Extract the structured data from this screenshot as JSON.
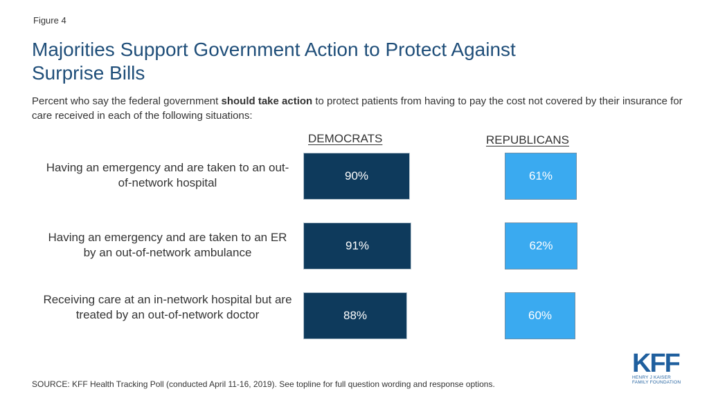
{
  "figure_label": "Figure 4",
  "title": "Majorities Support Government Action to Protect Against Surprise Bills",
  "subtitle": {
    "before": "Percent who say the federal government ",
    "bold": "should take action",
    "after": " to protect patients from having to pay the cost not covered by their insurance for care received in each of the following situations:"
  },
  "source": "SOURCE: KFF Health Tracking Poll (conducted April 11-16, 2019). See topline for full question wording and response options.",
  "logo": {
    "mark": "KFF",
    "line1": "HENRY J KAISER",
    "line2": "FAMILY FOUNDATION"
  },
  "colors": {
    "democrats": "#0e3a5c",
    "republicans": "#3aaaf0",
    "title": "#1f4e79"
  },
  "chart_data": {
    "type": "bar",
    "orientation": "horizontal",
    "value_unit": "%",
    "categories": [
      "Having an emergency and are taken to an out-of-network hospital",
      "Having an emergency and are taken to an ER by an out-of-network ambulance",
      "Receiving care at an in-network hospital but are treated by an out-of-network doctor"
    ],
    "series": [
      {
        "name": "DEMOCRATS",
        "values": [
          90,
          91,
          88
        ],
        "labels": [
          "90%",
          "91%",
          "88%"
        ]
      },
      {
        "name": "REPUBLICANS",
        "values": [
          61,
          62,
          60
        ],
        "labels": [
          "61%",
          "62%",
          "60%"
        ]
      }
    ],
    "xlim": [
      0,
      100
    ],
    "grid": false,
    "legend": "column headers"
  }
}
